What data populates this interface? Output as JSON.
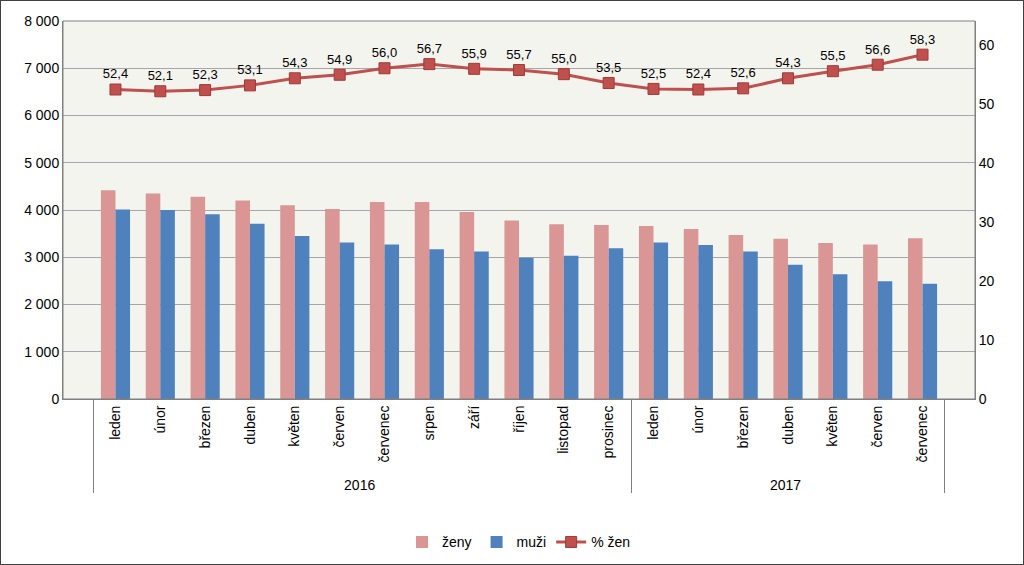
{
  "chart_data": {
    "type": "bar",
    "categories": [
      [
        "2016",
        "leden"
      ],
      [
        "2016",
        "únor"
      ],
      [
        "2016",
        "březen"
      ],
      [
        "2016",
        "duben"
      ],
      [
        "2016",
        "květen"
      ],
      [
        "2016",
        "červen"
      ],
      [
        "2016",
        "červenec"
      ],
      [
        "2016",
        "srpen"
      ],
      [
        "2016",
        "září"
      ],
      [
        "2016",
        "říjen"
      ],
      [
        "2016",
        "listopad"
      ],
      [
        "2016",
        "prosinec"
      ],
      [
        "2017",
        "leden"
      ],
      [
        "2017",
        "únor"
      ],
      [
        "2017",
        "březen"
      ],
      [
        "2017",
        "duben"
      ],
      [
        "2017",
        "květen"
      ],
      [
        "2017",
        "červen"
      ],
      [
        "2017",
        "červenec"
      ]
    ],
    "series": [
      {
        "name": "ženy",
        "type": "bar",
        "color": "#d99694",
        "values": [
          4420,
          4350,
          4280,
          4200,
          4100,
          4020,
          4170,
          4170,
          3960,
          3780,
          3700,
          3680,
          3660,
          3600,
          3470,
          3390,
          3300,
          3270,
          3400
        ]
      },
      {
        "name": "muži",
        "type": "bar",
        "color": "#4f81bd",
        "values": [
          4010,
          4000,
          3910,
          3710,
          3450,
          3310,
          3270,
          3170,
          3120,
          2990,
          3030,
          3190,
          3310,
          3260,
          3120,
          2840,
          2640,
          2490,
          2440
        ]
      },
      {
        "name": "% žen",
        "type": "line",
        "axis": "y2",
        "color": "#c0504d",
        "marker": "square",
        "data_labels": true,
        "values": [
          52.4,
          52.1,
          52.3,
          53.1,
          54.3,
          54.9,
          56.0,
          56.7,
          55.9,
          55.7,
          55.0,
          53.5,
          52.5,
          52.4,
          52.6,
          54.3,
          55.5,
          56.6,
          58.3
        ],
        "value_labels": [
          "52,4",
          "52,1",
          "52,3",
          "53,1",
          "54,3",
          "54,9",
          "56,0",
          "56,7",
          "55,9",
          "55,7",
          "55,0",
          "53,5",
          "52,5",
          "52,4",
          "52,6",
          "54,3",
          "55,5",
          "56,6",
          "58,3"
        ]
      }
    ],
    "ylim": [
      0,
      8000
    ],
    "yticks": [
      0,
      {
        "value": 1000,
        "label": "1 000"
      },
      {
        "value": 2000,
        "label": "2 000"
      },
      {
        "value": 3000,
        "label": "3 000"
      },
      {
        "value": 4000,
        "label": "4 000"
      },
      {
        "value": 5000,
        "label": "5 000"
      },
      {
        "value": 6000,
        "label": "6 000"
      },
      {
        "value": 7000,
        "label": "7 000"
      },
      {
        "value": 8000,
        "label": "8 000"
      }
    ],
    "y2lim": [
      0,
      64
    ],
    "y2ticks": [
      0,
      10,
      20,
      30,
      40,
      50,
      60
    ],
    "grid": true,
    "legend": "bottom"
  }
}
